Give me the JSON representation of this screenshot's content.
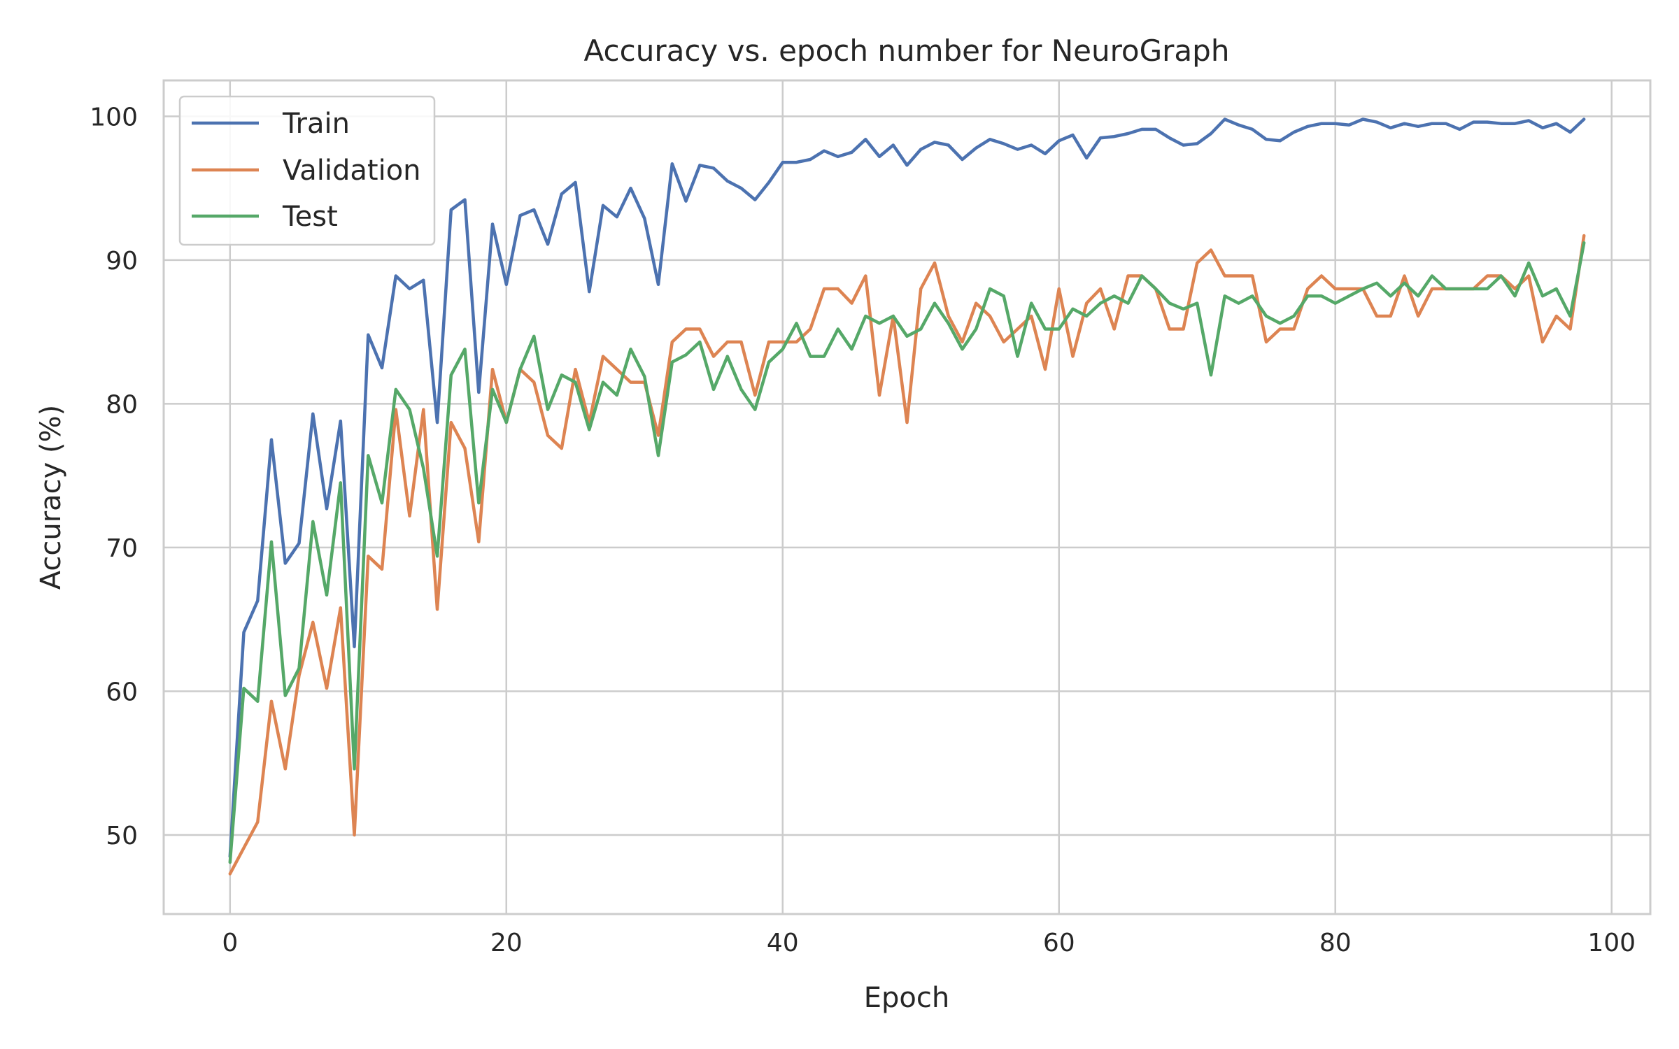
{
  "chart_data": {
    "type": "line",
    "title": "Accuracy vs. epoch number for NeuroGraph",
    "xlabel": "Epoch",
    "ylabel": "Accuracy (%)",
    "xlim": [
      -4.8,
      102.8
    ],
    "ylim": [
      44.5,
      102.5
    ],
    "xticks": [
      0,
      20,
      40,
      60,
      80,
      100
    ],
    "yticks": [
      50,
      60,
      70,
      80,
      90,
      100
    ],
    "grid": true,
    "legend_position": "top-left",
    "series": [
      {
        "name": "Train",
        "color": "#4c72b0",
        "values": [
          48.5,
          64.1,
          66.3,
          77.5,
          68.9,
          70.3,
          79.3,
          72.7,
          78.8,
          63.1,
          84.8,
          82.5,
          88.9,
          88.0,
          88.6,
          78.7,
          93.5,
          94.2,
          80.8,
          92.5,
          88.3,
          93.1,
          93.5,
          91.1,
          94.6,
          95.4,
          87.8,
          93.8,
          93.0,
          95.0,
          92.9,
          88.3,
          96.7,
          94.1,
          96.6,
          96.4,
          95.5,
          95.0,
          94.2,
          95.4,
          96.8,
          96.8,
          97.0,
          97.6,
          97.2,
          97.5,
          98.4,
          97.2,
          98.0,
          96.6,
          97.7,
          98.2,
          98.0,
          97.0,
          97.8,
          98.4,
          98.1,
          97.7,
          98.0,
          97.4,
          98.3,
          98.7,
          97.1,
          98.5,
          98.6,
          98.8,
          99.1,
          99.1,
          98.5,
          98.0,
          98.1,
          98.8,
          99.8,
          99.4,
          99.1,
          98.4,
          98.3,
          98.9,
          99.3,
          99.5,
          99.5,
          99.4,
          99.8,
          99.6,
          99.2,
          99.5,
          99.3,
          99.5,
          99.5,
          99.1,
          99.6,
          99.6,
          99.5,
          99.5,
          99.7,
          99.2,
          99.5,
          98.9,
          99.8
        ]
      },
      {
        "name": "Validation",
        "color": "#dd8452",
        "values": [
          47.3,
          49.1,
          50.9,
          59.3,
          54.6,
          61.1,
          64.8,
          60.2,
          65.8,
          50.0,
          69.4,
          68.5,
          79.6,
          72.2,
          79.6,
          65.7,
          78.7,
          76.9,
          70.4,
          82.4,
          78.7,
          82.4,
          81.5,
          77.8,
          76.9,
          82.4,
          78.7,
          83.3,
          82.4,
          81.5,
          81.5,
          77.8,
          84.3,
          85.2,
          85.2,
          83.3,
          84.3,
          84.3,
          80.6,
          84.3,
          84.3,
          84.3,
          85.2,
          88.0,
          88.0,
          87.0,
          88.9,
          80.6,
          86.1,
          78.7,
          88.0,
          89.8,
          86.1,
          84.3,
          87.0,
          86.1,
          84.3,
          85.2,
          86.1,
          82.4,
          88.0,
          83.3,
          87.0,
          88.0,
          85.2,
          88.9,
          88.9,
          88.0,
          85.2,
          85.2,
          89.8,
          90.7,
          88.9,
          88.9,
          88.9,
          84.3,
          85.2,
          85.2,
          88.0,
          88.9,
          88.0,
          88.0,
          88.0,
          86.1,
          86.1,
          88.9,
          86.1,
          88.0,
          88.0,
          88.0,
          88.0,
          88.9,
          88.9,
          88.0,
          88.9,
          84.3,
          86.1,
          85.2,
          91.7
        ]
      },
      {
        "name": "Test",
        "color": "#55a868",
        "values": [
          48.1,
          60.2,
          59.3,
          70.4,
          59.7,
          61.6,
          71.8,
          66.7,
          74.5,
          54.6,
          76.4,
          73.1,
          81.0,
          79.6,
          75.5,
          69.4,
          82.0,
          83.8,
          73.1,
          81.0,
          78.7,
          82.4,
          84.7,
          79.6,
          82.0,
          81.5,
          78.2,
          81.5,
          80.6,
          83.8,
          81.9,
          76.4,
          82.9,
          83.4,
          84.3,
          81.0,
          83.3,
          81.0,
          79.6,
          82.9,
          83.8,
          85.6,
          83.3,
          83.3,
          85.2,
          83.8,
          86.1,
          85.6,
          86.1,
          84.7,
          85.2,
          87.0,
          85.6,
          83.8,
          85.2,
          88.0,
          87.5,
          83.3,
          87.0,
          85.2,
          85.2,
          86.6,
          86.1,
          87.0,
          87.5,
          87.0,
          88.9,
          88.0,
          87.0,
          86.6,
          87.0,
          82.0,
          87.5,
          87.0,
          87.5,
          86.1,
          85.6,
          86.1,
          87.5,
          87.5,
          87.0,
          87.5,
          88.0,
          88.4,
          87.5,
          88.4,
          87.5,
          88.9,
          88.0,
          88.0,
          88.0,
          88.0,
          88.9,
          87.5,
          89.8,
          87.5,
          88.0,
          86.1,
          91.2
        ]
      }
    ]
  }
}
